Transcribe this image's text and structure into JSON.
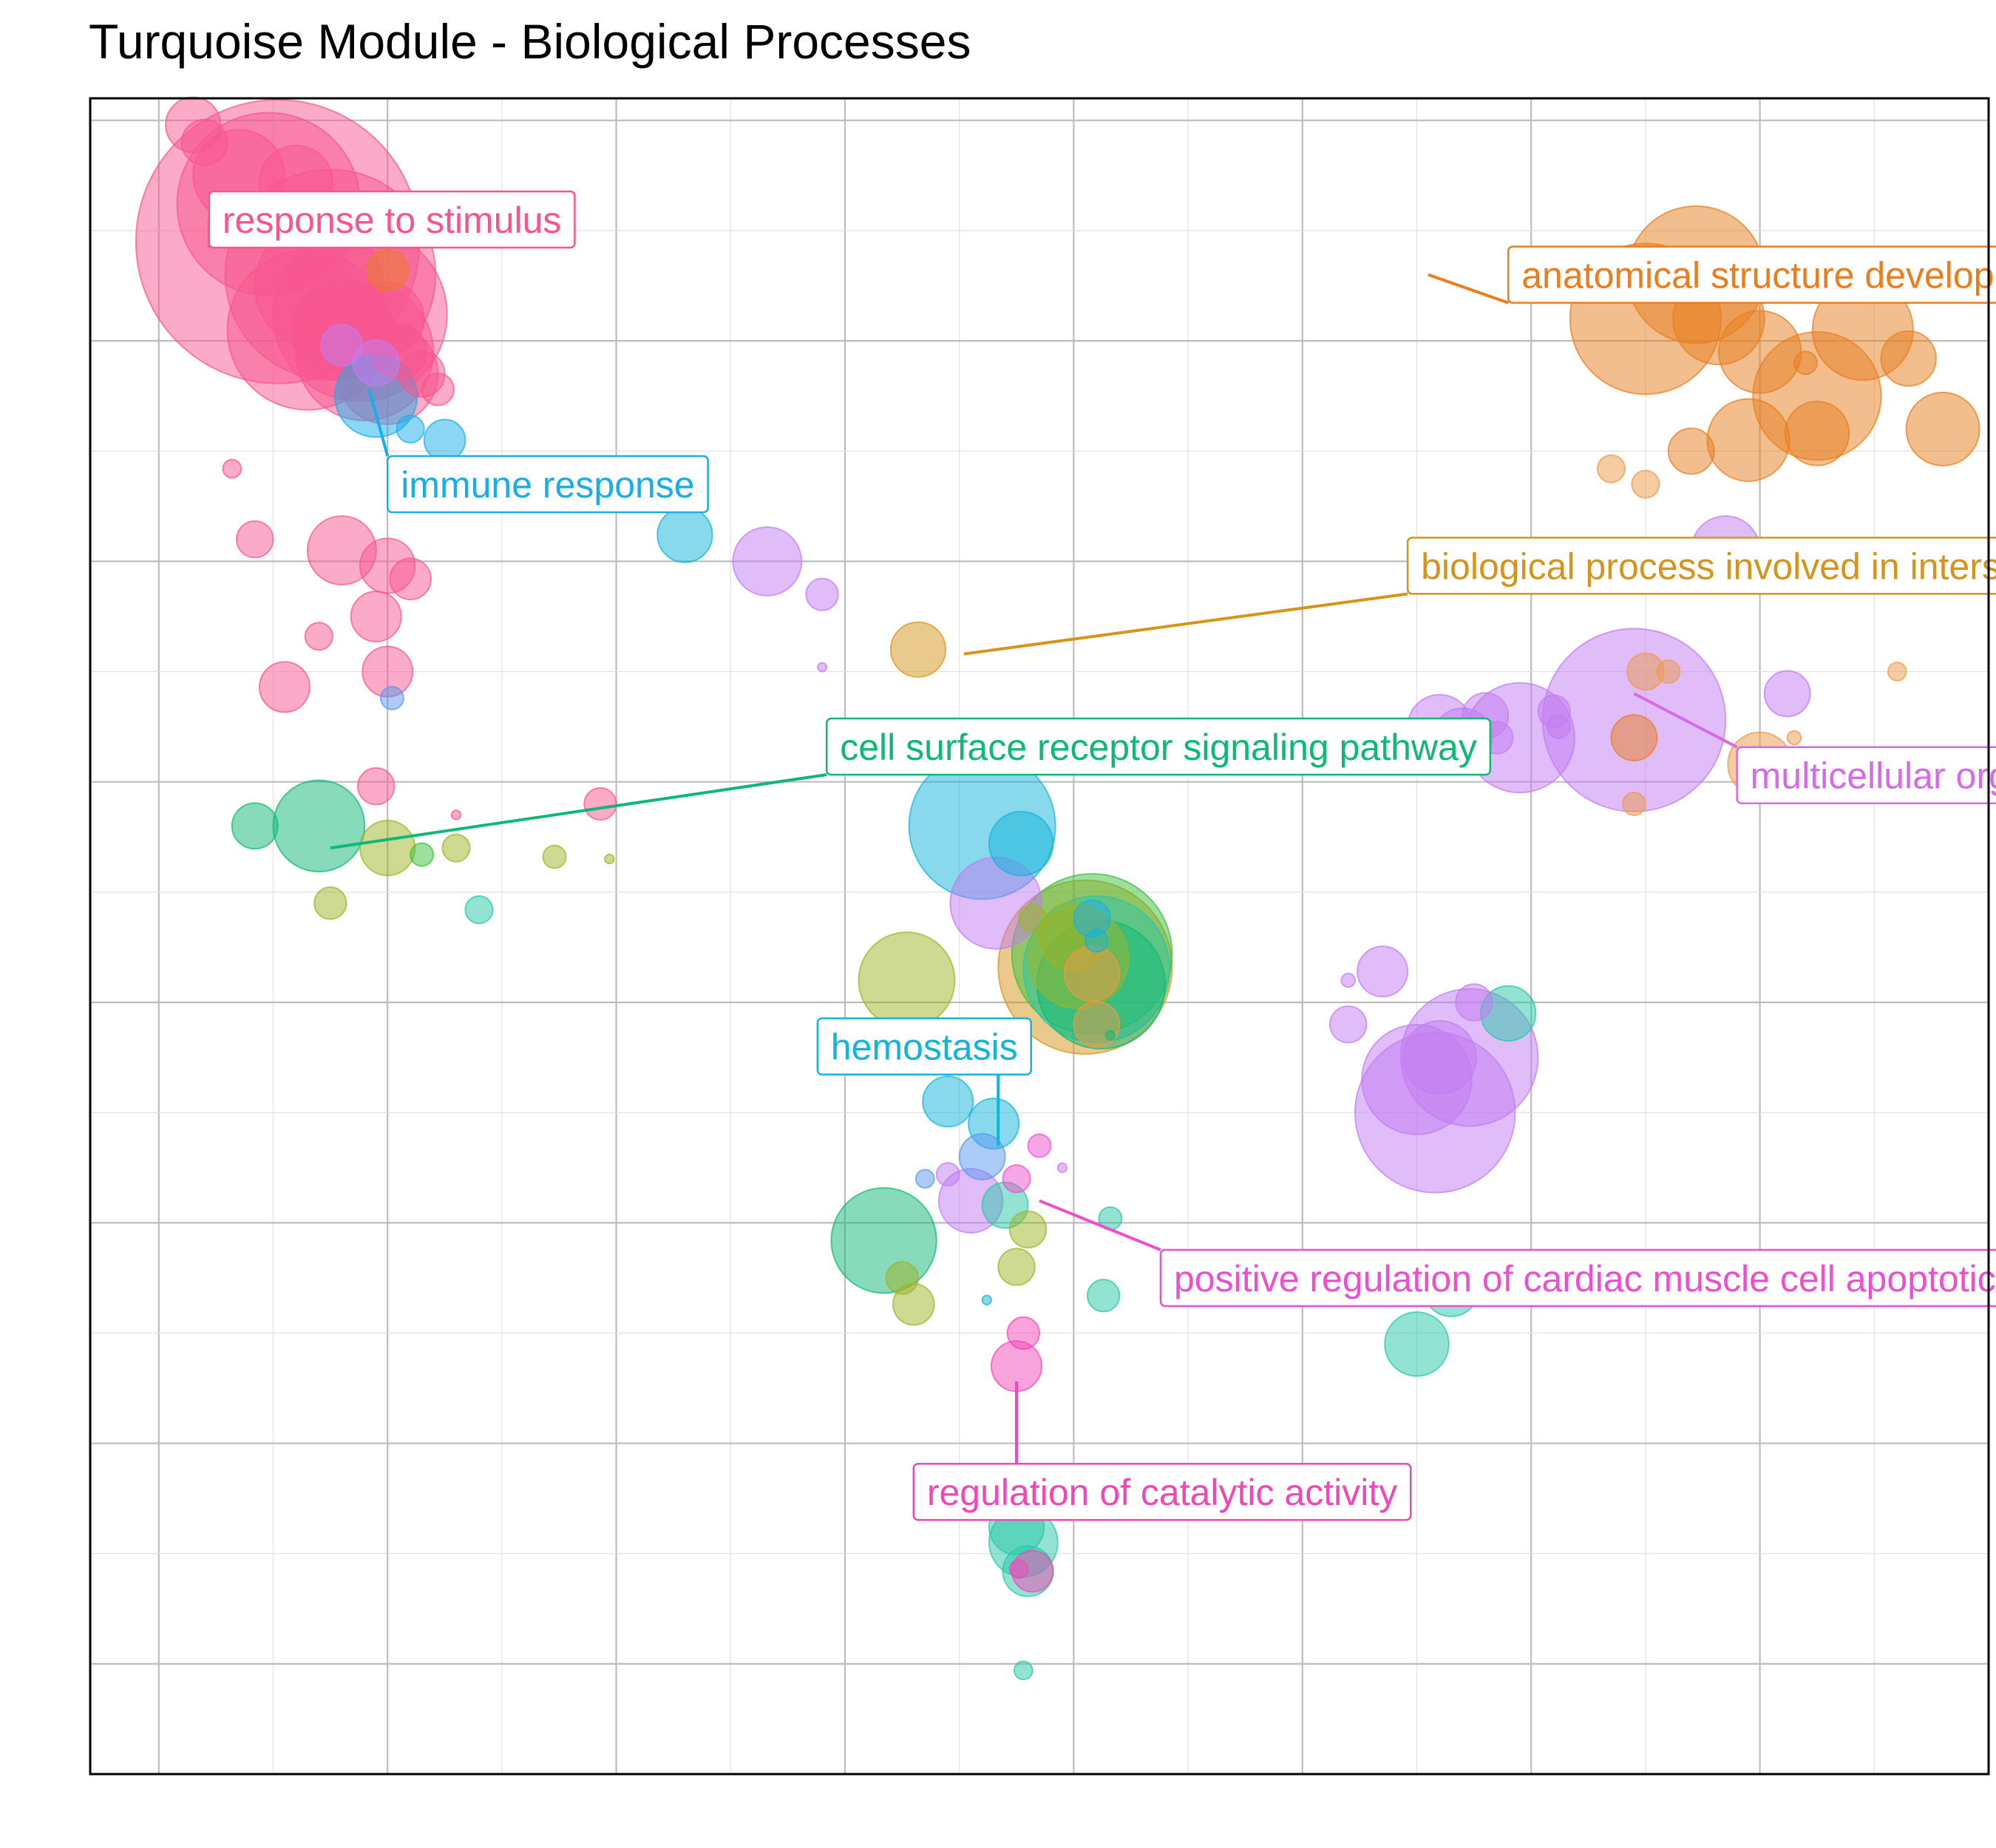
{
  "chart_data": {
    "type": "scatter",
    "title": "Turquoise Module - Biological Processes",
    "xlabel": "",
    "ylabel": "",
    "xlim": [
      -4.3,
      4.0
    ],
    "ylim": [
      -4.5,
      3.1
    ],
    "grid": true,
    "legend": "none",
    "colors": {
      "response_to_stimulus": "#F8558F",
      "immune_response": "#1AADEB",
      "anatomical_structure_development": "#E87E1D",
      "biological_process_interspecies": "#D4951A",
      "cell_surface_receptor_signaling": "#0FB875",
      "multicellular_organismal_process": "#D66AEB",
      "hemostasis": "#12B4DA",
      "positive_regulation_cardiac": "#EE4FCF",
      "regulation_of_catalytic_activity": "#F148B8",
      "olive": "#9EB425",
      "teal": "#27C7A8",
      "blue": "#5A97EE",
      "lightpurple": "#C27CF2",
      "green": "#3BBF3B",
      "lightorange": "#EC9A48"
    },
    "labels": [
      {
        "text": "response to stimulus",
        "color": "response_to_stimulus",
        "px": [
          -3.78,
          2.55
        ],
        "lx": [
          -3.78,
          2.55
        ]
      },
      {
        "text": "immune response",
        "color": "immune_response",
        "px": [
          -3.08,
          1.78
        ],
        "lx": [
          -3.0,
          1.35
        ]
      },
      {
        "text": "anatomical structure development",
        "color": "anatomical_structure_development",
        "px": [
          1.55,
          2.3
        ],
        "lx": [
          1.9,
          2.3
        ]
      },
      {
        "text": "biological process involved in interspecies interaction between organisms",
        "color": "biological_process_interspecies",
        "px": [
          -0.48,
          0.58
        ],
        "lx": [
          1.46,
          0.98
        ]
      },
      {
        "text": "cell surface receptor signaling pathway",
        "color": "cell_surface_receptor_signaling",
        "px": [
          -3.25,
          -0.3
        ],
        "lx": [
          -1.08,
          0.16
        ]
      },
      {
        "text": "multicellular organismal process",
        "color": "multicellular_organismal_process",
        "px": [
          2.45,
          0.4
        ],
        "lx": [
          2.9,
          0.03
        ]
      },
      {
        "text": "hemostasis",
        "color": "hemostasis",
        "px": [
          -0.33,
          -1.65
        ],
        "lx": [
          -1.12,
          -1.2
        ]
      },
      {
        "text": "positive regulation of cardiac muscle cell apoptotic process",
        "color": "positive_regulation_cardiac",
        "px": [
          -0.15,
          -1.9
        ],
        "lx": [
          0.38,
          -2.25
        ]
      },
      {
        "text": "regulation of catalytic activity",
        "color": "regulation_of_catalytic_activity",
        "px": [
          -0.25,
          -2.72
        ],
        "lx": [
          -0.7,
          -3.22
        ]
      }
    ],
    "points": [
      {
        "x": -3.48,
        "y": 2.45,
        "r": 0.62,
        "c": "response_to_stimulus"
      },
      {
        "x": -3.25,
        "y": 2.3,
        "r": 0.46,
        "c": "response_to_stimulus"
      },
      {
        "x": -3.52,
        "y": 2.62,
        "r": 0.4,
        "c": "response_to_stimulus"
      },
      {
        "x": -3.12,
        "y": 2.12,
        "r": 0.38,
        "c": "response_to_stimulus"
      },
      {
        "x": -3.3,
        "y": 2.25,
        "r": 0.28,
        "c": "response_to_stimulus"
      },
      {
        "x": -3.2,
        "y": 2.05,
        "r": 0.22,
        "c": "response_to_stimulus"
      },
      {
        "x": -3.35,
        "y": 2.05,
        "r": 0.35,
        "c": "response_to_stimulus"
      },
      {
        "x": -3.1,
        "y": 1.95,
        "r": 0.3,
        "c": "response_to_stimulus"
      },
      {
        "x": -3.0,
        "y": 1.85,
        "r": 0.22,
        "c": "response_to_stimulus"
      },
      {
        "x": -3.85,
        "y": 2.98,
        "r": 0.12,
        "c": "response_to_stimulus"
      },
      {
        "x": -3.8,
        "y": 2.9,
        "r": 0.1,
        "c": "response_to_stimulus"
      },
      {
        "x": -3.65,
        "y": 2.75,
        "r": 0.2,
        "c": "response_to_stimulus"
      },
      {
        "x": -3.4,
        "y": 2.72,
        "r": 0.16,
        "c": "response_to_stimulus"
      },
      {
        "x": -3.0,
        "y": 2.1,
        "r": 0.16,
        "c": "response_to_stimulus"
      },
      {
        "x": -2.95,
        "y": 1.95,
        "r": 0.12,
        "c": "response_to_stimulus"
      },
      {
        "x": -2.85,
        "y": 1.85,
        "r": 0.1,
        "c": "response_to_stimulus"
      },
      {
        "x": -2.78,
        "y": 1.78,
        "r": 0.07,
        "c": "response_to_stimulus"
      },
      {
        "x": -3.0,
        "y": 2.32,
        "r": 0.09,
        "c": "anatomical_structure_development"
      },
      {
        "x": -3.2,
        "y": 1.98,
        "r": 0.09,
        "c": "lightpurple"
      },
      {
        "x": -3.05,
        "y": 1.9,
        "r": 0.1,
        "c": "lightpurple"
      },
      {
        "x": -3.05,
        "y": 1.75,
        "r": 0.18,
        "c": "immune_response"
      },
      {
        "x": -2.9,
        "y": 1.6,
        "r": 0.06,
        "c": "immune_response"
      },
      {
        "x": -2.75,
        "y": 1.55,
        "r": 0.09,
        "c": "immune_response"
      },
      {
        "x": -3.68,
        "y": 1.42,
        "r": 0.04,
        "c": "response_to_stimulus"
      },
      {
        "x": -3.58,
        "y": 1.1,
        "r": 0.08,
        "c": "response_to_stimulus"
      },
      {
        "x": -3.2,
        "y": 1.05,
        "r": 0.15,
        "c": "response_to_stimulus"
      },
      {
        "x": -3.0,
        "y": 0.98,
        "r": 0.12,
        "c": "response_to_stimulus"
      },
      {
        "x": -2.9,
        "y": 0.92,
        "r": 0.09,
        "c": "response_to_stimulus"
      },
      {
        "x": -3.05,
        "y": 0.75,
        "r": 0.11,
        "c": "response_to_stimulus"
      },
      {
        "x": -3.3,
        "y": 0.66,
        "r": 0.06,
        "c": "response_to_stimulus"
      },
      {
        "x": -3.45,
        "y": 0.43,
        "r": 0.11,
        "c": "response_to_stimulus"
      },
      {
        "x": -3.0,
        "y": 0.5,
        "r": 0.11,
        "c": "response_to_stimulus"
      },
      {
        "x": -2.98,
        "y": 0.38,
        "r": 0.05,
        "c": "blue"
      },
      {
        "x": -3.3,
        "y": -0.2,
        "r": 0.2,
        "c": "cell_surface_receptor_signaling"
      },
      {
        "x": -3.58,
        "y": -0.2,
        "r": 0.1,
        "c": "cell_surface_receptor_signaling"
      },
      {
        "x": -3.0,
        "y": -0.3,
        "r": 0.12,
        "c": "olive"
      },
      {
        "x": -2.7,
        "y": -0.3,
        "r": 0.06,
        "c": "olive"
      },
      {
        "x": -2.85,
        "y": -0.33,
        "r": 0.05,
        "c": "green"
      },
      {
        "x": -2.6,
        "y": -0.58,
        "r": 0.06,
        "c": "teal"
      },
      {
        "x": -3.05,
        "y": -0.02,
        "r": 0.08,
        "c": "response_to_stimulus"
      },
      {
        "x": -2.7,
        "y": -0.15,
        "r": 0.02,
        "c": "response_to_stimulus"
      },
      {
        "x": -3.25,
        "y": -0.55,
        "r": 0.07,
        "c": "olive"
      },
      {
        "x": -2.27,
        "y": -0.34,
        "r": 0.05,
        "c": "olive"
      },
      {
        "x": -2.03,
        "y": -0.35,
        "r": 0.02,
        "c": "olive"
      },
      {
        "x": -2.07,
        "y": -0.1,
        "r": 0.07,
        "c": "response_to_stimulus"
      },
      {
        "x": -1.7,
        "y": 1.12,
        "r": 0.12,
        "c": "hemostasis"
      },
      {
        "x": -1.34,
        "y": 1.0,
        "r": 0.15,
        "c": "lightpurple"
      },
      {
        "x": -1.1,
        "y": 0.85,
        "r": 0.07,
        "c": "lightpurple"
      },
      {
        "x": -0.68,
        "y": 0.6,
        "r": 0.12,
        "c": "biological_process_interspecies"
      },
      {
        "x": -1.1,
        "y": 0.52,
        "r": 0.01,
        "c": "lightpurple"
      },
      {
        "x": -0.4,
        "y": -0.2,
        "r": 0.32,
        "c": "hemostasis"
      },
      {
        "x": -0.23,
        "y": -0.28,
        "r": 0.14,
        "c": "hemostasis"
      },
      {
        "x": -0.34,
        "y": -0.55,
        "r": 0.2,
        "c": "lightpurple"
      },
      {
        "x": -0.18,
        "y": -0.62,
        "r": 0.06,
        "c": "olive"
      },
      {
        "x": 0.0,
        "y": -0.7,
        "r": 0.15,
        "c": "olive"
      },
      {
        "x": 0.05,
        "y": -0.84,
        "r": 0.38,
        "c": "biological_process_interspecies"
      },
      {
        "x": 0.08,
        "y": -0.78,
        "r": 0.35,
        "c": "green"
      },
      {
        "x": 0.1,
        "y": -0.85,
        "r": 0.32,
        "c": "teal"
      },
      {
        "x": 0.12,
        "y": -0.92,
        "r": 0.28,
        "c": "cell_surface_receptor_signaling"
      },
      {
        "x": 0.02,
        "y": -0.8,
        "r": 0.22,
        "c": "olive"
      },
      {
        "x": 0.08,
        "y": -0.62,
        "r": 0.08,
        "c": "immune_response"
      },
      {
        "x": 0.1,
        "y": -0.72,
        "r": 0.05,
        "c": "hemostasis"
      },
      {
        "x": 0.08,
        "y": -0.87,
        "r": 0.12,
        "c": "lightorange"
      },
      {
        "x": 0.1,
        "y": -1.1,
        "r": 0.1,
        "c": "lightorange"
      },
      {
        "x": -0.73,
        "y": -0.9,
        "r": 0.21,
        "c": "olive"
      },
      {
        "x": -0.55,
        "y": -1.45,
        "r": 0.11,
        "c": "hemostasis"
      },
      {
        "x": -0.35,
        "y": -1.55,
        "r": 0.11,
        "c": "hemostasis"
      },
      {
        "x": -0.4,
        "y": -1.7,
        "r": 0.1,
        "c": "blue"
      },
      {
        "x": -0.45,
        "y": -1.9,
        "r": 0.14,
        "c": "lightpurple"
      },
      {
        "x": -0.3,
        "y": -1.92,
        "r": 0.1,
        "c": "teal"
      },
      {
        "x": -0.65,
        "y": -1.8,
        "r": 0.04,
        "c": "blue"
      },
      {
        "x": -0.55,
        "y": -1.78,
        "r": 0.05,
        "c": "lightpurple"
      },
      {
        "x": -0.25,
        "y": -1.8,
        "r": 0.06,
        "c": "positive_regulation_cardiac"
      },
      {
        "x": -0.15,
        "y": -1.65,
        "r": 0.05,
        "c": "positive_regulation_cardiac"
      },
      {
        "x": -0.05,
        "y": -1.75,
        "r": 0.02,
        "c": "lightpurple"
      },
      {
        "x": -0.2,
        "y": -2.03,
        "r": 0.08,
        "c": "olive"
      },
      {
        "x": 0.16,
        "y": -1.98,
        "r": 0.05,
        "c": "teal"
      },
      {
        "x": -0.83,
        "y": -2.08,
        "r": 0.23,
        "c": "cell_surface_receptor_signaling"
      },
      {
        "x": -0.75,
        "y": -2.25,
        "r": 0.07,
        "c": "olive"
      },
      {
        "x": -0.7,
        "y": -2.37,
        "r": 0.09,
        "c": "olive"
      },
      {
        "x": -0.25,
        "y": -2.2,
        "r": 0.08,
        "c": "olive"
      },
      {
        "x": -0.38,
        "y": -2.35,
        "r": 0.02,
        "c": "hemostasis"
      },
      {
        "x": 0.13,
        "y": -2.33,
        "r": 0.07,
        "c": "teal"
      },
      {
        "x": -0.22,
        "y": -2.5,
        "r": 0.07,
        "c": "regulation_of_catalytic_activity"
      },
      {
        "x": -0.25,
        "y": -2.65,
        "r": 0.11,
        "c": "regulation_of_catalytic_activity"
      },
      {
        "x": -0.25,
        "y": -3.38,
        "r": 0.12,
        "c": "teal"
      },
      {
        "x": -0.22,
        "y": -3.45,
        "r": 0.15,
        "c": "teal"
      },
      {
        "x": -0.2,
        "y": -3.58,
        "r": 0.11,
        "c": "teal"
      },
      {
        "x": -0.18,
        "y": -3.58,
        "r": 0.09,
        "c": "regulation_of_catalytic_activity"
      },
      {
        "x": -0.24,
        "y": -3.57,
        "r": 0.04,
        "c": "regulation_of_catalytic_activity"
      },
      {
        "x": -0.22,
        "y": -4.03,
        "r": 0.04,
        "c": "teal"
      },
      {
        "x": 0.16,
        "y": -1.15,
        "r": 0.01,
        "c": "cell_surface_receptor_signaling"
      },
      {
        "x": 2.5,
        "y": 2.1,
        "r": 0.33,
        "c": "anatomical_structure_development"
      },
      {
        "x": 2.72,
        "y": 2.3,
        "r": 0.3,
        "c": "anatomical_structure_development"
      },
      {
        "x": 2.82,
        "y": 2.1,
        "r": 0.2,
        "c": "anatomical_structure_development"
      },
      {
        "x": 3.0,
        "y": 1.95,
        "r": 0.18,
        "c": "anatomical_structure_development"
      },
      {
        "x": 3.25,
        "y": 1.75,
        "r": 0.28,
        "c": "anatomical_structure_development"
      },
      {
        "x": 3.45,
        "y": 2.05,
        "r": 0.22,
        "c": "anatomical_structure_development"
      },
      {
        "x": 3.65,
        "y": 1.92,
        "r": 0.12,
        "c": "anatomical_structure_development"
      },
      {
        "x": 3.8,
        "y": 1.6,
        "r": 0.16,
        "c": "anatomical_structure_development"
      },
      {
        "x": 3.25,
        "y": 1.58,
        "r": 0.14,
        "c": "anatomical_structure_development"
      },
      {
        "x": 2.95,
        "y": 1.55,
        "r": 0.18,
        "c": "anatomical_structure_development"
      },
      {
        "x": 2.7,
        "y": 1.5,
        "r": 0.1,
        "c": "anatomical_structure_development"
      },
      {
        "x": 2.5,
        "y": 1.35,
        "r": 0.06,
        "c": "lightorange"
      },
      {
        "x": 2.35,
        "y": 1.42,
        "r": 0.06,
        "c": "lightorange"
      },
      {
        "x": 3.2,
        "y": 1.9,
        "r": 0.05,
        "c": "anatomical_structure_development"
      },
      {
        "x": 2.18,
        "y": 0.9,
        "r": 0.03,
        "c": "lightorange"
      },
      {
        "x": 2.85,
        "y": 1.05,
        "r": 0.15,
        "c": "lightpurple"
      },
      {
        "x": 2.5,
        "y": 0.5,
        "r": 0.08,
        "c": "lightorange"
      },
      {
        "x": 2.6,
        "y": 0.5,
        "r": 0.05,
        "c": "lightorange"
      },
      {
        "x": 2.45,
        "y": 0.2,
        "r": 0.1,
        "c": "anatomical_structure_development"
      },
      {
        "x": 3.12,
        "y": 0.4,
        "r": 0.1,
        "c": "lightpurple"
      },
      {
        "x": 3.0,
        "y": 0.08,
        "r": 0.14,
        "c": "lightorange"
      },
      {
        "x": 3.15,
        "y": 0.2,
        "r": 0.03,
        "c": "lightorange"
      },
      {
        "x": 3.6,
        "y": 0.5,
        "r": 0.04,
        "c": "lightorange"
      },
      {
        "x": 2.45,
        "y": 0.28,
        "r": 0.4,
        "c": "lightpurple"
      },
      {
        "x": 1.95,
        "y": 0.2,
        "r": 0.24,
        "c": "lightpurple"
      },
      {
        "x": 1.6,
        "y": 0.25,
        "r": 0.14,
        "c": "lightpurple"
      },
      {
        "x": 1.7,
        "y": 0.2,
        "r": 0.13,
        "c": "lightpurple"
      },
      {
        "x": 1.8,
        "y": 0.3,
        "r": 0.1,
        "c": "lightpurple"
      },
      {
        "x": 1.85,
        "y": 0.2,
        "r": 0.07,
        "c": "lightpurple"
      },
      {
        "x": 2.1,
        "y": 0.32,
        "r": 0.07,
        "c": "lightpurple"
      },
      {
        "x": 2.12,
        "y": 0.25,
        "r": 0.05,
        "c": "lightpurple"
      },
      {
        "x": 2.45,
        "y": -0.1,
        "r": 0.05,
        "c": "lightorange"
      },
      {
        "x": 1.35,
        "y": -0.86,
        "r": 0.11,
        "c": "lightpurple"
      },
      {
        "x": 1.2,
        "y": -1.1,
        "r": 0.08,
        "c": "lightpurple"
      },
      {
        "x": 1.2,
        "y": -0.9,
        "r": 0.03,
        "c": "lightpurple"
      },
      {
        "x": 1.73,
        "y": -1.25,
        "r": 0.3,
        "c": "lightpurple"
      },
      {
        "x": 1.58,
        "y": -1.5,
        "r": 0.35,
        "c": "lightpurple"
      },
      {
        "x": 1.5,
        "y": -1.35,
        "r": 0.24,
        "c": "lightpurple"
      },
      {
        "x": 1.6,
        "y": -1.25,
        "r": 0.16,
        "c": "lightpurple"
      },
      {
        "x": 1.9,
        "y": -1.05,
        "r": 0.12,
        "c": "teal"
      },
      {
        "x": 1.75,
        "y": -1.0,
        "r": 0.08,
        "c": "lightpurple"
      },
      {
        "x": 1.65,
        "y": -2.3,
        "r": 0.12,
        "c": "teal"
      },
      {
        "x": 1.5,
        "y": -2.55,
        "r": 0.14,
        "c": "teal"
      }
    ]
  }
}
